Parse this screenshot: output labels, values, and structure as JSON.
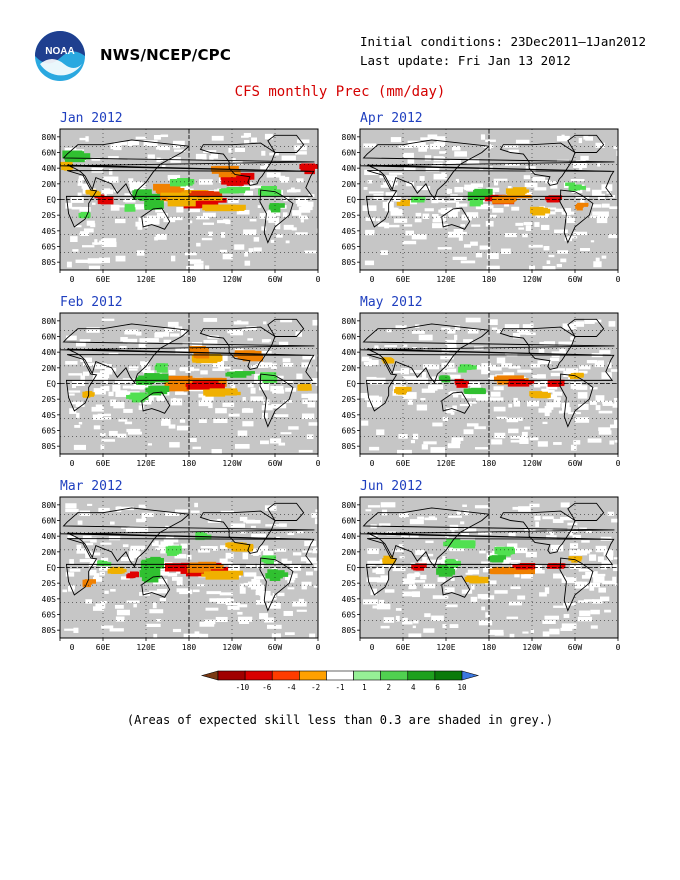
{
  "header": {
    "agency": "NWS/NCEP/CPC",
    "logo_text": "NOAA",
    "initial_conditions": "Initial conditions: 23Dec2011–1Jan2012",
    "last_update": "Last update: Fri Jan 13 2012"
  },
  "title": "CFS monthly Prec (mm/day)",
  "panels": [
    {
      "title": "Jan 2012",
      "pattern": [
        [
          150,
          10,
          22,
          12,
          "#f08000"
        ],
        [
          185,
          5,
          24,
          8,
          "#f0a000"
        ],
        [
          195,
          -5,
          30,
          7,
          "#e00000"
        ],
        [
          180,
          0,
          40,
          9,
          "#f0b000"
        ],
        [
          200,
          5,
          20,
          6,
          "#e03000"
        ],
        [
          225,
          -12,
          30,
          6,
          "#f0b000"
        ],
        [
          60,
          0,
          14,
          8,
          "#e00000"
        ],
        [
          45,
          8,
          10,
          5,
          "#f0b000"
        ],
        [
          118,
          5,
          18,
          8,
          "#30c030"
        ],
        [
          130,
          -10,
          14,
          10,
          "#30c030"
        ],
        [
          98,
          -12,
          10,
          7,
          "#50e050"
        ],
        [
          288,
          10,
          18,
          8,
          "#50e050"
        ],
        [
          300,
          -12,
          14,
          8,
          "#30c030"
        ],
        [
          240,
          10,
          20,
          6,
          "#50e050"
        ],
        [
          250,
          25,
          28,
          10,
          "#e00000"
        ],
        [
          230,
          35,
          22,
          8,
          "#f08000"
        ],
        [
          345,
          40,
          12,
          8,
          "#e00000"
        ],
        [
          20,
          55,
          20,
          8,
          "#30c030"
        ],
        [
          35,
          -20,
          10,
          6,
          "#50e050"
        ],
        [
          10,
          40,
          12,
          8,
          "#f0b000"
        ],
        [
          170,
          20,
          18,
          8,
          "#50e050"
        ]
      ]
    },
    {
      "title": "Apr 2012",
      "pattern": [
        [
          165,
          5,
          18,
          9,
          "#30c030"
        ],
        [
          160,
          -5,
          10,
          6,
          "#50e050"
        ],
        [
          190,
          0,
          20,
          6,
          "#e00000"
        ],
        [
          210,
          0,
          28,
          6,
          "#f08000"
        ],
        [
          270,
          0,
          12,
          6,
          "#e00000"
        ],
        [
          300,
          15,
          14,
          7,
          "#50e050"
        ],
        [
          220,
          10,
          18,
          6,
          "#f0b000"
        ],
        [
          60,
          -5,
          10,
          5,
          "#f0b000"
        ],
        [
          80,
          0,
          10,
          5,
          "#50e050"
        ],
        [
          250,
          -15,
          18,
          6,
          "#f0b000"
        ],
        [
          310,
          -10,
          10,
          6,
          "#f08000"
        ]
      ]
    },
    {
      "title": "Feb 2012",
      "pattern": [
        [
          180,
          0,
          40,
          10,
          "#f08000"
        ],
        [
          195,
          -3,
          30,
          7,
          "#e00000"
        ],
        [
          225,
          -12,
          30,
          6,
          "#f0b000"
        ],
        [
          125,
          5,
          20,
          9,
          "#30c030"
        ],
        [
          135,
          -10,
          16,
          8,
          "#30c030"
        ],
        [
          110,
          -18,
          18,
          7,
          "#50e050"
        ],
        [
          200,
          30,
          20,
          8,
          "#f0b000"
        ],
        [
          195,
          40,
          16,
          8,
          "#f08000"
        ],
        [
          140,
          20,
          10,
          6,
          "#50e050"
        ],
        [
          290,
          8,
          14,
          7,
          "#50e050"
        ],
        [
          250,
          10,
          20,
          6,
          "#30c030"
        ],
        [
          40,
          -15,
          10,
          6,
          "#f0b000"
        ],
        [
          340,
          -5,
          10,
          5,
          "#f0b000"
        ],
        [
          260,
          35,
          18,
          8,
          "#f08000"
        ]
      ]
    },
    {
      "title": "May 2012",
      "pattern": [
        [
          140,
          0,
          10,
          6,
          "#e00000"
        ],
        [
          210,
          5,
          30,
          6,
          "#f08000"
        ],
        [
          225,
          0,
          20,
          6,
          "#e00000"
        ],
        [
          270,
          0,
          12,
          6,
          "#e00000"
        ],
        [
          120,
          5,
          10,
          6,
          "#30c030"
        ],
        [
          160,
          -10,
          16,
          6,
          "#30c030"
        ],
        [
          60,
          -10,
          14,
          6,
          "#f0b000"
        ],
        [
          150,
          20,
          14,
          6,
          "#50e050"
        ],
        [
          250,
          -15,
          16,
          6,
          "#f0b000"
        ],
        [
          40,
          30,
          10,
          5,
          "#f0b000"
        ],
        [
          300,
          10,
          10,
          5,
          "#f0b000"
        ]
      ]
    },
    {
      "title": "Mar 2012",
      "pattern": [
        [
          185,
          -3,
          40,
          10,
          "#e00000"
        ],
        [
          200,
          0,
          30,
          8,
          "#f08000"
        ],
        [
          225,
          -10,
          30,
          6,
          "#f0b000"
        ],
        [
          130,
          5,
          18,
          12,
          "#30c030"
        ],
        [
          125,
          -10,
          14,
          10,
          "#30c030"
        ],
        [
          160,
          20,
          14,
          8,
          "#50e050"
        ],
        [
          100,
          -10,
          10,
          6,
          "#e00000"
        ],
        [
          80,
          -5,
          14,
          6,
          "#f0b000"
        ],
        [
          290,
          10,
          12,
          6,
          "#50e050"
        ],
        [
          300,
          -10,
          14,
          8,
          "#30c030"
        ],
        [
          250,
          25,
          20,
          8,
          "#f0b000"
        ],
        [
          60,
          5,
          10,
          5,
          "#50e050"
        ],
        [
          40,
          -20,
          10,
          6,
          "#f08000"
        ],
        [
          200,
          40,
          14,
          6,
          "#50e050"
        ]
      ]
    },
    {
      "title": "Jun 2012",
      "pattern": [
        [
          120,
          -5,
          14,
          9,
          "#30c030"
        ],
        [
          130,
          5,
          12,
          6,
          "#50e050"
        ],
        [
          210,
          -5,
          30,
          6,
          "#f08000"
        ],
        [
          230,
          0,
          20,
          6,
          "#e00000"
        ],
        [
          275,
          0,
          14,
          6,
          "#e00000"
        ],
        [
          140,
          30,
          24,
          8,
          "#50e050"
        ],
        [
          200,
          20,
          16,
          8,
          "#50e050"
        ],
        [
          190,
          10,
          14,
          6,
          "#30c030"
        ],
        [
          40,
          10,
          10,
          6,
          "#f0b000"
        ],
        [
          80,
          0,
          10,
          6,
          "#e00000"
        ],
        [
          160,
          -15,
          16,
          6,
          "#f0b000"
        ],
        [
          300,
          10,
          10,
          5,
          "#f0b000"
        ]
      ]
    }
  ],
  "lat_labels": [
    "80N",
    "60N",
    "40N",
    "20N",
    "EQ",
    "20S",
    "40S",
    "60S",
    "80S"
  ],
  "lon_labels": [
    "0",
    "60E",
    "120E",
    "180",
    "120W",
    "60W",
    "0"
  ],
  "colorbar": {
    "ticks": [
      "-10",
      "-6",
      "-4",
      "-2",
      "-1",
      "1",
      "2",
      "4",
      "6",
      "10"
    ],
    "colors": [
      "#7a3a14",
      "#a00000",
      "#d80000",
      "#ff3c00",
      "#ffa000",
      "#ffffff",
      "#96f096",
      "#50d050",
      "#1ea01e",
      "#0a7a0a",
      "#3c78e0"
    ]
  },
  "caption": "(Areas of expected skill less than 0.3 are shaded in grey.)",
  "colors": {
    "title_red": "#d40000",
    "panel_title_blue": "#1f3fbf",
    "skill_grey": "#c6c6c6"
  }
}
